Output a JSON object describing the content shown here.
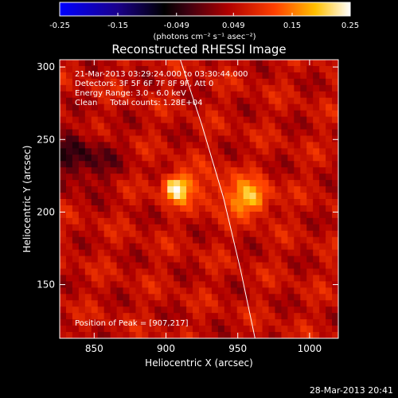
{
  "chart_data": {
    "type": "heatmap",
    "title": "Reconstructed RHESSI Image",
    "xlabel": "Heliocentric X (arcsec)",
    "ylabel": "Heliocentric Y (arcsec)",
    "xlim": [
      826,
      1020
    ],
    "ylim": [
      113,
      305
    ],
    "xticks": [
      850,
      900,
      950,
      1000
    ],
    "yticks": [
      150,
      200,
      250,
      300
    ],
    "colorbar": {
      "range": [
        -0.25,
        0.25
      ],
      "ticks": [
        "-0.25",
        "-0.15",
        "-0.049",
        "0.049",
        "0.15",
        "0.25"
      ],
      "unit": "(photons cm⁻² s⁻¹ asec⁻²)",
      "colormap": "blue-black-red-yellow-white"
    },
    "annotations": [
      "21-Mar-2013 03:29:24.000 to 03:30:44.000",
      "Detectors: 3F 5F 6F 7F 8F 9F, Att 0",
      "Energy Range: 3.0 - 6.0 keV",
      "Clean     Total counts: 1.28E+04"
    ],
    "peak_label": "Position of Peak = [907,217]",
    "sources": [
      {
        "x": 907,
        "y": 217,
        "peak": 0.25
      },
      {
        "x": 960,
        "y": 209,
        "peak": 0.19
      }
    ],
    "limb_curve": {
      "x": [
        910,
        925,
        940,
        952,
        962
      ],
      "y": [
        305,
        260,
        210,
        160,
        113
      ]
    }
  },
  "footer": {
    "date": "28-Mar-2013 20:41"
  }
}
